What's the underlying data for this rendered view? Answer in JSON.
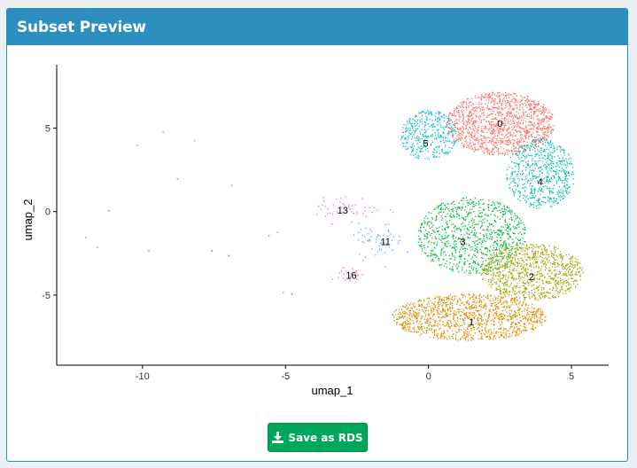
{
  "panel": {
    "title": "Subset Preview"
  },
  "actions": {
    "save_label": "Save as RDS"
  },
  "colors": {
    "header": "#2c8fc0",
    "button": "#00a65a"
  },
  "chart_data": {
    "type": "scatter",
    "xlabel": "umap_1",
    "ylabel": "umap_2",
    "xlim": [
      -13,
      6.3
    ],
    "ylim": [
      -9.2,
      8.8
    ],
    "x_ticks": [
      -10,
      -5,
      0,
      5
    ],
    "y_ticks": [
      5,
      0,
      -5
    ],
    "x_tick_labels": [
      "-10",
      "-5",
      "0",
      "5"
    ],
    "y_tick_labels": [
      "5",
      "0",
      "-5"
    ],
    "grid": false,
    "legend": "none",
    "clusters": [
      {
        "label": "0",
        "color": "#f8766d",
        "center": [
          2.5,
          5.3
        ],
        "label_pos": [
          2.5,
          5.3
        ]
      },
      {
        "label": "5",
        "color": "#00bcd8",
        "center": [
          0.0,
          4.6
        ],
        "label_pos": [
          -0.1,
          4.1
        ]
      },
      {
        "label": "4",
        "color": "#00c1a9",
        "center": [
          3.9,
          2.3
        ],
        "label_pos": [
          3.9,
          1.8
        ]
      },
      {
        "label": "3",
        "color": "#00ba38",
        "center": [
          1.5,
          -1.4
        ],
        "label_pos": [
          1.2,
          -1.8
        ]
      },
      {
        "label": "2",
        "color": "#a3a500",
        "center": [
          3.6,
          -3.6
        ],
        "label_pos": [
          3.6,
          -3.9
        ]
      },
      {
        "label": "1",
        "color": "#de8c00",
        "center": [
          1.4,
          -6.3
        ],
        "label_pos": [
          1.5,
          -6.6
        ]
      },
      {
        "label": "13",
        "color": "#e76bf3",
        "center": [
          -2.8,
          0.2
        ],
        "label_pos": [
          -3.0,
          0.1
        ]
      },
      {
        "label": "11",
        "color": "#619cff",
        "center": [
          -1.8,
          -1.7
        ],
        "label_pos": [
          -1.5,
          -1.8
        ]
      },
      {
        "label": "16",
        "color": "#ff62bc",
        "center": [
          -2.8,
          -3.8
        ],
        "label_pos": [
          -2.7,
          -3.8
        ]
      }
    ]
  }
}
